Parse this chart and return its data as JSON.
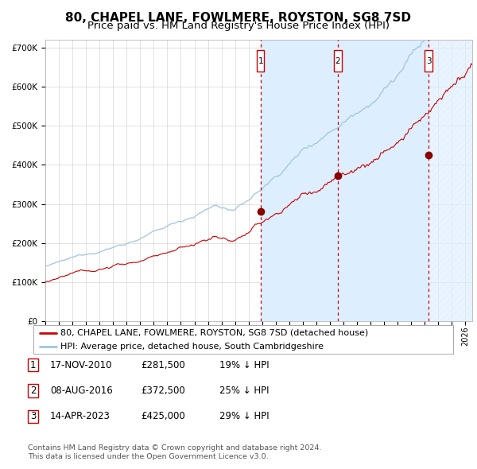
{
  "title": "80, CHAPEL LANE, FOWLMERE, ROYSTON, SG8 7SD",
  "subtitle": "Price paid vs. HM Land Registry's House Price Index (HPI)",
  "ylim": [
    0,
    720000
  ],
  "xlim_start": 1995.0,
  "xlim_end": 2026.5,
  "yticks": [
    0,
    100000,
    200000,
    300000,
    400000,
    500000,
    600000,
    700000
  ],
  "background_color": "#ffffff",
  "plot_bg_color": "#ffffff",
  "grid_color": "#cccccc",
  "hpi_line_color": "#a0c4e0",
  "price_line_color": "#cc0000",
  "sale_marker_color": "#880000",
  "sale1_date_x": 2010.88,
  "sale1_price": 281500,
  "sale2_date_x": 2016.59,
  "sale2_price": 372500,
  "sale3_date_x": 2023.28,
  "sale3_price": 425000,
  "shade_color": "#ddeeff",
  "vline_color": "#cc0000",
  "legend_line1": "80, CHAPEL LANE, FOWLMERE, ROYSTON, SG8 7SD (detached house)",
  "legend_line2": "HPI: Average price, detached house, South Cambridgeshire",
  "table_rows": [
    {
      "num": "1",
      "date": "17-NOV-2010",
      "price": "£281,500",
      "pct": "19% ↓ HPI"
    },
    {
      "num": "2",
      "date": "08-AUG-2016",
      "price": "£372,500",
      "pct": "25% ↓ HPI"
    },
    {
      "num": "3",
      "date": "14-APR-2023",
      "price": "£425,000",
      "pct": "29% ↓ HPI"
    }
  ],
  "footer1": "Contains HM Land Registry data © Crown copyright and database right 2024.",
  "footer2": "This data is licensed under the Open Government Licence v3.0.",
  "title_fontsize": 11,
  "subtitle_fontsize": 9.5,
  "tick_fontsize": 7.5,
  "legend_fontsize": 8,
  "table_fontsize": 8.5
}
